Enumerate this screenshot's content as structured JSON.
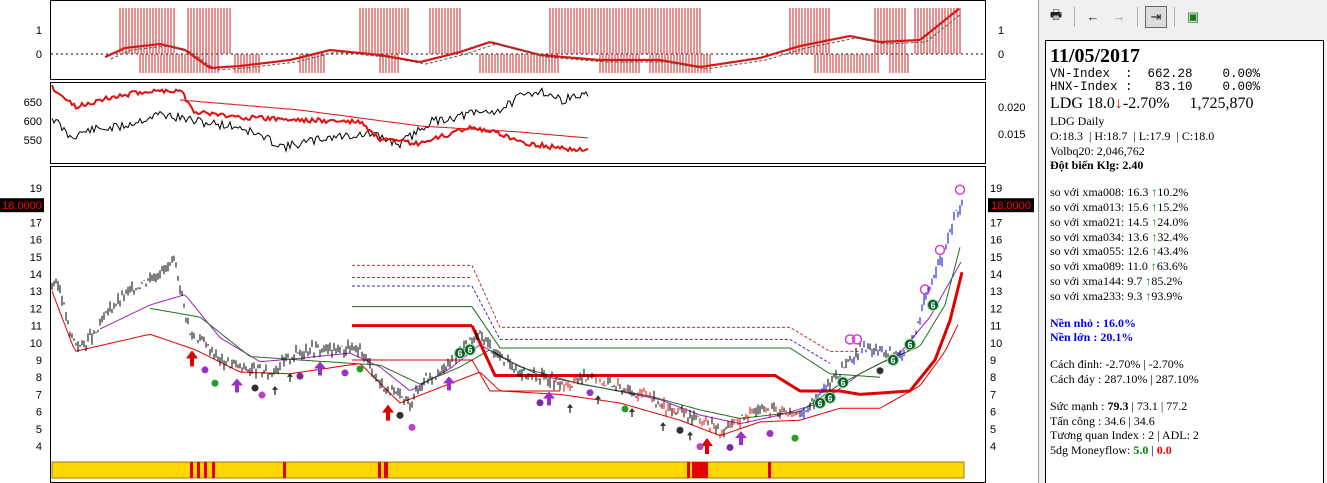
{
  "colors": {
    "up": "#008000",
    "down": "#ff0000",
    "accent_blue": "#0000ff",
    "bar_yellow": "#ffd700",
    "purple": "#9b30c8"
  },
  "toolbar": {
    "items": [
      {
        "name": "print-icon",
        "glyph": "🖶"
      },
      {
        "name": "back-arrow-icon",
        "glyph": "←"
      },
      {
        "name": "forward-arrow-icon",
        "glyph": "→"
      },
      {
        "name": "jump-to-end-icon",
        "glyph": "⇥"
      },
      {
        "name": "document-icon",
        "glyph": "▣"
      }
    ]
  },
  "charts": {
    "top": {
      "ticks_left": [
        "1",
        "0"
      ],
      "ticks_right": [
        "1",
        "0"
      ]
    },
    "mid": {
      "ticks_left": [
        "650",
        "600",
        "550"
      ],
      "ticks_right": [
        "0.020",
        "0.015"
      ]
    },
    "main": {
      "ticks": [
        "19",
        "18",
        "17",
        "16",
        "15",
        "14",
        "13",
        "12",
        "11",
        "10",
        "9",
        "8",
        "7",
        "6",
        "5",
        "4"
      ],
      "price_tag": "18.0000"
    }
  },
  "info": {
    "date": "11/05/2017",
    "indexes": [
      {
        "text": "VN-Index  :  662.28    0.00%"
      },
      {
        "text": "HNX-Index :   83.10    0.00%"
      }
    ],
    "ticker": "LDG",
    "price": "18.0",
    "down_arrow": "↓",
    "change": "-2.70%",
    "volume": "1,725,870",
    "chart_name": "LDG Daily",
    "ohlc": "O:18.3  | H:18.7  | L:17.9  | C:18.0",
    "volbq": "Volbq20: 2,046,762",
    "dotbien_label": "Đột biến Klg: ",
    "dotbien_value": "2.40",
    "xma": [
      {
        "label": "so với xma008:",
        "val": "16.3",
        "pct": "10.2%"
      },
      {
        "label": "so với xma013:",
        "val": "15.6",
        "pct": "15.2%"
      },
      {
        "label": "so với xma021:",
        "val": "14.5",
        "pct": "24.0%"
      },
      {
        "label": "so với xma034:",
        "val": "13.6",
        "pct": "32.4%"
      },
      {
        "label": "so với xma055:",
        "val": "12.6",
        "pct": "43.4%"
      },
      {
        "label": "so với xma089:",
        "val": "11.0",
        "pct": "63.6%"
      },
      {
        "label": "so với xma144:",
        "val": "9.7",
        "pct": "85.2%"
      },
      {
        "label": "so với xma233:",
        "val": "9.3",
        "pct": "93.9%"
      }
    ],
    "up_arrow": "↑",
    "nen_nho": "Nền nhỏ : 16.0%",
    "nen_lon": "Nền lớn : 20.1%",
    "cach_dinh": "Cách đỉnh: -2.70% | -2.70%",
    "cach_day": "Cách đáy : 287.10% | 287.10%",
    "suc_manh_label": "Sức mạnh : ",
    "suc_manh_main": "79.3",
    "suc_manh_rest": " | 73.1 | 77.2",
    "tan_cong": "Tấn công : 34.6 | 34.6",
    "tuong_quan": "Tương quan Index : 2 | ADL: 2",
    "moneyflow_label": "5dg Moneyflow: ",
    "moneyflow_up": "5.0",
    "moneyflow_sep": " | ",
    "moneyflow_down": "0.0"
  }
}
